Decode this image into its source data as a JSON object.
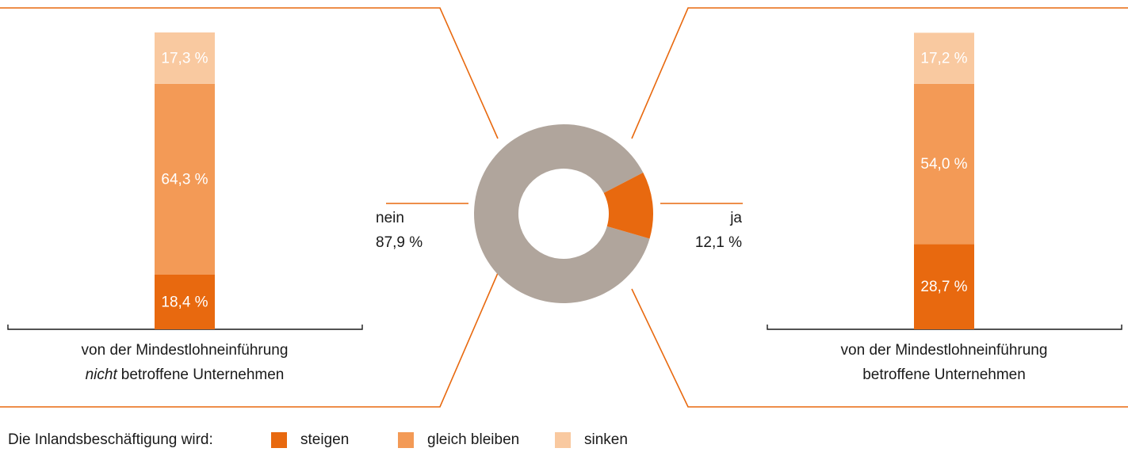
{
  "chart_data": [
    {
      "type": "pie",
      "categories": [
        "nein",
        "ja"
      ],
      "values": [
        87.9,
        12.1
      ],
      "value_labels": [
        "87,9 %",
        "12,1 %"
      ],
      "colors": [
        "#b0a59c",
        "#e8690f"
      ]
    },
    {
      "type": "bar",
      "stacked": true,
      "categories": [
        [
          "von der Mindestlohneinführung",
          "nicht",
          "betroffene Unternehmen"
        ],
        [
          "von der Mindestlohneinführung",
          "betroffene Unternehmen"
        ]
      ],
      "ylim": [
        0,
        100
      ],
      "legend_title": "Die Inlandsbeschäftigung wird:",
      "series": [
        {
          "name": "steigen",
          "color": "#e8690f",
          "values": [
            18.4,
            28.7
          ],
          "value_labels": [
            "18,4 %",
            "28,7 %"
          ]
        },
        {
          "name": "gleich bleiben",
          "color": "#f39a56",
          "values": [
            64.3,
            54.0
          ],
          "value_labels": [
            "64,3 %",
            "54,0 %"
          ]
        },
        {
          "name": "sinken",
          "color": "#f9c9a0",
          "values": [
            17.3,
            17.2
          ],
          "value_labels": [
            "17,3 %",
            "17,2 %"
          ]
        }
      ]
    }
  ]
}
